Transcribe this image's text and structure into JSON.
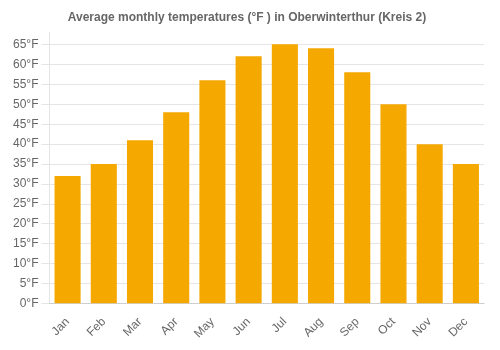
{
  "chart_data": {
    "type": "bar",
    "title": "Average monthly temperatures (°F ) in Oberwinterthur (Kreis 2)",
    "categories": [
      "Jan",
      "Feb",
      "Mar",
      "Apr",
      "May",
      "Jun",
      "Jul",
      "Aug",
      "Sep",
      "Oct",
      "Nov",
      "Dec"
    ],
    "values": [
      32,
      35,
      41,
      48,
      56,
      62,
      65,
      64,
      58,
      50,
      40,
      35
    ],
    "color": "#F5A800",
    "ylim": [
      0,
      68
    ],
    "yticks": [
      {
        "value": 0,
        "label": "0°F"
      },
      {
        "value": 5,
        "label": "5°F"
      },
      {
        "value": 10,
        "label": "10°F"
      },
      {
        "value": 15,
        "label": "15°F"
      },
      {
        "value": 20,
        "label": "20°F"
      },
      {
        "value": 25,
        "label": "25°F"
      },
      {
        "value": 30,
        "label": "30°F"
      },
      {
        "value": 35,
        "label": "35°F"
      },
      {
        "value": 40,
        "label": "40°F"
      },
      {
        "value": 45,
        "label": "45°F"
      },
      {
        "value": 50,
        "label": "50°F"
      },
      {
        "value": 55,
        "label": "55°F"
      },
      {
        "value": 60,
        "label": "60°F"
      },
      {
        "value": 65,
        "label": "65°F"
      }
    ],
    "grid": true
  }
}
